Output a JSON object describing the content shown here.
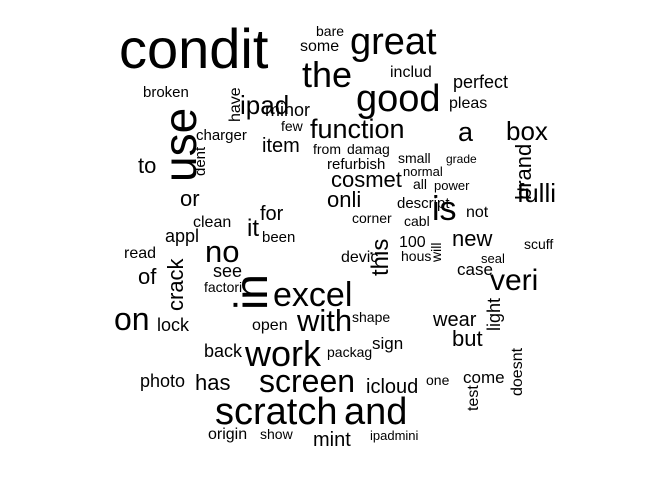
{
  "wordcloud": {
    "color": "#000000",
    "words": [
      {
        "text": "condit",
        "weight": 100
      },
      {
        "text": "great",
        "weight": 70
      },
      {
        "text": "good",
        "weight": 68
      },
      {
        "text": "the",
        "weight": 62
      },
      {
        "text": "use",
        "weight": 75
      },
      {
        "text": "ipad",
        "weight": 48
      },
      {
        "text": "function",
        "weight": 52
      },
      {
        "text": "a",
        "weight": 50
      },
      {
        "text": "box",
        "weight": 44
      },
      {
        "text": "is",
        "weight": 58
      },
      {
        "text": "excel",
        "weight": 80
      },
      {
        "text": "in",
        "weight": 90
      },
      {
        "text": "no",
        "weight": 55
      },
      {
        "text": "on",
        "weight": 60
      },
      {
        "text": "work",
        "weight": 68
      },
      {
        "text": "screen",
        "weight": 60
      },
      {
        "text": "with",
        "weight": 55
      },
      {
        "text": "scratch",
        "weight": 78
      },
      {
        "text": "and",
        "weight": 78
      },
      {
        "text": "veri",
        "weight": 52
      },
      {
        "text": "fulli",
        "weight": 42
      },
      {
        "text": "new",
        "weight": 35
      },
      {
        "text": "brand",
        "weight": 30
      },
      {
        "text": "crack",
        "weight": 40
      },
      {
        "text": "it",
        "weight": 38
      },
      {
        "text": "this",
        "weight": 38
      },
      {
        "text": "cosmet",
        "weight": 36
      },
      {
        "text": "onli",
        "weight": 34
      },
      {
        "text": "item",
        "weight": 32
      },
      {
        "text": "for",
        "weight": 34
      },
      {
        "text": "or",
        "weight": 34
      },
      {
        "text": "to",
        "weight": 32
      },
      {
        "text": "of",
        "weight": 34
      },
      {
        "text": "has",
        "weight": 38
      },
      {
        "text": "but",
        "weight": 36
      },
      {
        "text": "wear",
        "weight": 32
      },
      {
        "text": "light",
        "weight": 28
      },
      {
        "text": "icloud",
        "weight": 32
      },
      {
        "text": "mint",
        "weight": 34
      },
      {
        "text": "minor",
        "weight": 30
      },
      {
        "text": "perfect",
        "weight": 28
      },
      {
        "text": "includ",
        "weight": 26
      },
      {
        "text": "pleas",
        "weight": 26
      },
      {
        "text": "have",
        "weight": 24
      },
      {
        "text": "some",
        "weight": 24
      },
      {
        "text": "bare",
        "weight": 20
      },
      {
        "text": "refurbish",
        "weight": 24
      },
      {
        "text": "from",
        "weight": 22
      },
      {
        "text": "damag",
        "weight": 22
      },
      {
        "text": "small",
        "weight": 22
      },
      {
        "text": "charger",
        "weight": 22
      },
      {
        "text": "few",
        "weight": 22
      },
      {
        "text": "dent",
        "weight": 22
      },
      {
        "text": "clean",
        "weight": 24
      },
      {
        "text": "appl",
        "weight": 26
      },
      {
        "text": "been",
        "weight": 24
      },
      {
        "text": "devic",
        "weight": 24
      },
      {
        "text": "descript",
        "weight": 24
      },
      {
        "text": "not",
        "weight": 24
      },
      {
        "text": "case",
        "weight": 24
      },
      {
        "text": "hous",
        "weight": 20
      },
      {
        "text": "100",
        "weight": 24
      },
      {
        "text": "see",
        "weight": 26
      },
      {
        "text": "read",
        "weight": 22
      },
      {
        "text": "lock",
        "weight": 26
      },
      {
        "text": "open",
        "weight": 24
      },
      {
        "text": "back",
        "weight": 26
      },
      {
        "text": "photo",
        "weight": 26
      },
      {
        "text": "sign",
        "weight": 24
      },
      {
        "text": "shape",
        "weight": 22
      },
      {
        "text": "come",
        "weight": 24
      },
      {
        "text": "one",
        "weight": 22
      },
      {
        "text": "test",
        "weight": 24
      },
      {
        "text": "doesnt",
        "weight": 22
      },
      {
        "text": "origin",
        "weight": 24
      },
      {
        "text": "show",
        "weight": 20
      },
      {
        "text": "ipadmini",
        "weight": 18
      },
      {
        "text": "scuff",
        "weight": 20
      },
      {
        "text": "factori",
        "weight": 20
      },
      {
        "text": "packag",
        "weight": 20
      },
      {
        "text": "seal",
        "weight": 18
      },
      {
        "text": "all",
        "weight": 20
      },
      {
        "text": "power",
        "weight": 18
      },
      {
        "text": "normal",
        "weight": 18
      },
      {
        "text": "grade",
        "weight": 16
      },
      {
        "text": "corner",
        "weight": 20
      },
      {
        "text": "cabl",
        "weight": 18
      },
      {
        "text": "will",
        "weight": 18
      },
      {
        "text": "broken",
        "weight": 22
      }
    ]
  }
}
